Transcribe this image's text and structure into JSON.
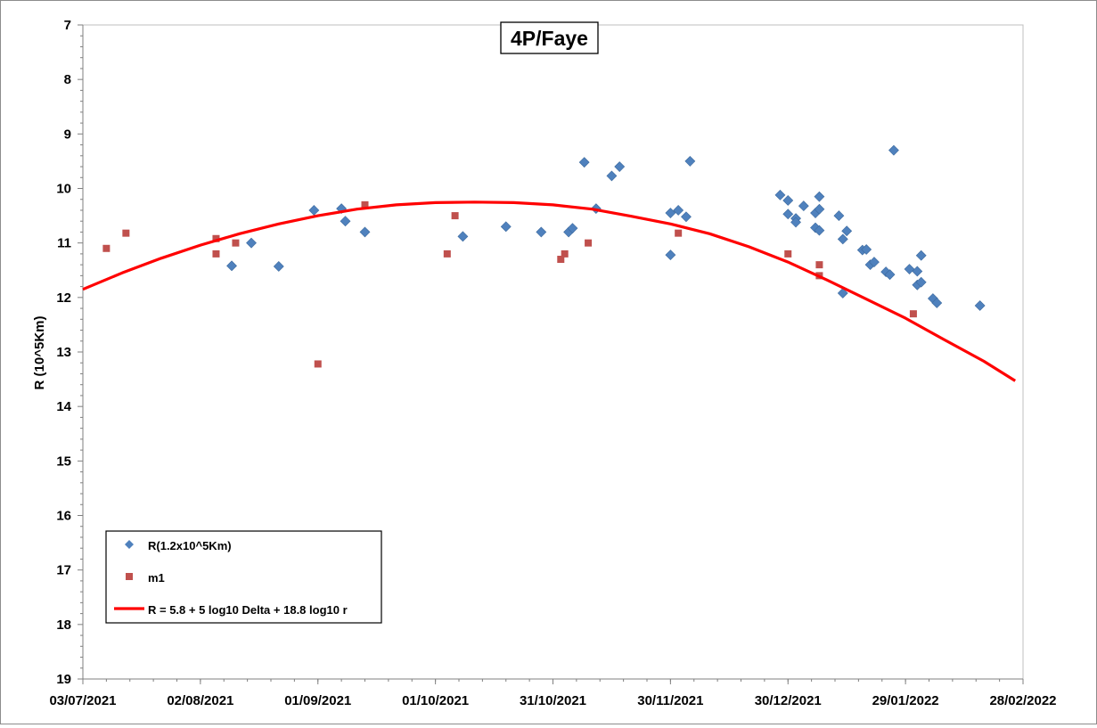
{
  "chart_data": {
    "type": "scatter",
    "title": "4P/Faye",
    "ylabel": "R (10^5Km)",
    "xlabel": "",
    "ylim": [
      7,
      19
    ],
    "y_inverted": true,
    "xlim": [
      "2021-07-03",
      "2022-02-28"
    ],
    "yticks": [
      "7",
      "8",
      "9",
      "10",
      "11",
      "12",
      "13",
      "14",
      "15",
      "16",
      "17",
      "18",
      "19"
    ],
    "xticks": [
      {
        "date": "2021-07-03",
        "label": "03/07/2021"
      },
      {
        "date": "2021-08-02",
        "label": "02/08/2021"
      },
      {
        "date": "2021-09-01",
        "label": "01/09/2021"
      },
      {
        "date": "2021-10-01",
        "label": "01/10/2021"
      },
      {
        "date": "2021-10-31",
        "label": "31/10/2021"
      },
      {
        "date": "2021-11-30",
        "label": "30/11/2021"
      },
      {
        "date": "2021-12-30",
        "label": "30/12/2021"
      },
      {
        "date": "2022-01-29",
        "label": "29/01/2022"
      },
      {
        "date": "2022-02-28",
        "label": "28/02/2022"
      }
    ],
    "grid": false,
    "legend_position": "bottom-left",
    "series": [
      {
        "name": "R(1.2x10^5Km)",
        "marker": "diamond",
        "color": "#4f81bd",
        "points": [
          {
            "x": "2021-08-10",
            "y": 11.42
          },
          {
            "x": "2021-08-15",
            "y": 11.0
          },
          {
            "x": "2021-08-22",
            "y": 11.43
          },
          {
            "x": "2021-08-31",
            "y": 10.4
          },
          {
            "x": "2021-09-07",
            "y": 10.37
          },
          {
            "x": "2021-09-08",
            "y": 10.6
          },
          {
            "x": "2021-09-13",
            "y": 10.8
          },
          {
            "x": "2021-10-08",
            "y": 10.88
          },
          {
            "x": "2021-10-19",
            "y": 10.7
          },
          {
            "x": "2021-10-28",
            "y": 10.8
          },
          {
            "x": "2021-11-04",
            "y": 10.8
          },
          {
            "x": "2021-11-05",
            "y": 10.73
          },
          {
            "x": "2021-11-08",
            "y": 9.52
          },
          {
            "x": "2021-11-11",
            "y": 10.37
          },
          {
            "x": "2021-11-15",
            "y": 9.77
          },
          {
            "x": "2021-11-17",
            "y": 9.6
          },
          {
            "x": "2021-11-30",
            "y": 10.45
          },
          {
            "x": "2021-11-30",
            "y": 11.22
          },
          {
            "x": "2021-12-02",
            "y": 10.4
          },
          {
            "x": "2021-12-04",
            "y": 10.52
          },
          {
            "x": "2021-12-05",
            "y": 9.5
          },
          {
            "x": "2021-12-28",
            "y": 10.12
          },
          {
            "x": "2021-12-30",
            "y": 10.22
          },
          {
            "x": "2021-12-30",
            "y": 10.47
          },
          {
            "x": "2022-01-01",
            "y": 10.55
          },
          {
            "x": "2022-01-01",
            "y": 10.62
          },
          {
            "x": "2022-01-03",
            "y": 10.32
          },
          {
            "x": "2022-01-06",
            "y": 10.45
          },
          {
            "x": "2022-01-07",
            "y": 10.15
          },
          {
            "x": "2022-01-07",
            "y": 10.38
          },
          {
            "x": "2022-01-06",
            "y": 10.72
          },
          {
            "x": "2022-01-07",
            "y": 10.77
          },
          {
            "x": "2022-01-12",
            "y": 10.5
          },
          {
            "x": "2022-01-13",
            "y": 10.93
          },
          {
            "x": "2022-01-14",
            "y": 10.78
          },
          {
            "x": "2022-01-13",
            "y": 11.92
          },
          {
            "x": "2022-01-18",
            "y": 11.13
          },
          {
            "x": "2022-01-19",
            "y": 11.12
          },
          {
            "x": "2022-01-20",
            "y": 11.4
          },
          {
            "x": "2022-01-21",
            "y": 11.35
          },
          {
            "x": "2022-01-24",
            "y": 11.53
          },
          {
            "x": "2022-01-25",
            "y": 11.58
          },
          {
            "x": "2022-01-26",
            "y": 9.3
          },
          {
            "x": "2022-01-30",
            "y": 11.48
          },
          {
            "x": "2022-02-01",
            "y": 11.52
          },
          {
            "x": "2022-02-02",
            "y": 11.23
          },
          {
            "x": "2022-02-01",
            "y": 11.77
          },
          {
            "x": "2022-02-02",
            "y": 11.72
          },
          {
            "x": "2022-02-05",
            "y": 12.02
          },
          {
            "x": "2022-02-06",
            "y": 12.1
          },
          {
            "x": "2022-02-17",
            "y": 12.15
          }
        ]
      },
      {
        "name": "m1",
        "marker": "square",
        "color": "#c0504d",
        "points": [
          {
            "x": "2021-07-09",
            "y": 11.1
          },
          {
            "x": "2021-07-14",
            "y": 10.82
          },
          {
            "x": "2021-08-06",
            "y": 11.2
          },
          {
            "x": "2021-08-06",
            "y": 10.92
          },
          {
            "x": "2021-08-11",
            "y": 11.0
          },
          {
            "x": "2021-09-01",
            "y": 13.22
          },
          {
            "x": "2021-09-13",
            "y": 10.3
          },
          {
            "x": "2021-10-04",
            "y": 11.2
          },
          {
            "x": "2021-10-06",
            "y": 10.5
          },
          {
            "x": "2021-11-02",
            "y": 11.3
          },
          {
            "x": "2021-11-03",
            "y": 11.2
          },
          {
            "x": "2021-11-09",
            "y": 11.0
          },
          {
            "x": "2021-12-02",
            "y": 10.82
          },
          {
            "x": "2021-12-30",
            "y": 11.2
          },
          {
            "x": "2022-01-07",
            "y": 11.6
          },
          {
            "x": "2022-01-07",
            "y": 11.4
          },
          {
            "x": "2022-01-31",
            "y": 12.3
          }
        ]
      },
      {
        "name": "R = 5.8 + 5 log10 Delta + 18.8 log10 r",
        "type": "line",
        "color": "#ff0000",
        "points": [
          {
            "x": "2021-07-03",
            "y": 11.85
          },
          {
            "x": "2021-07-13",
            "y": 11.55
          },
          {
            "x": "2021-07-23",
            "y": 11.28
          },
          {
            "x": "2021-08-02",
            "y": 11.04
          },
          {
            "x": "2021-08-12",
            "y": 10.83
          },
          {
            "x": "2021-08-22",
            "y": 10.65
          },
          {
            "x": "2021-09-01",
            "y": 10.5
          },
          {
            "x": "2021-09-11",
            "y": 10.38
          },
          {
            "x": "2021-09-21",
            "y": 10.3
          },
          {
            "x": "2021-10-01",
            "y": 10.26
          },
          {
            "x": "2021-10-11",
            "y": 10.25
          },
          {
            "x": "2021-10-21",
            "y": 10.26
          },
          {
            "x": "2021-10-31",
            "y": 10.3
          },
          {
            "x": "2021-11-10",
            "y": 10.38
          },
          {
            "x": "2021-11-20",
            "y": 10.51
          },
          {
            "x": "2021-11-30",
            "y": 10.65
          },
          {
            "x": "2021-12-10",
            "y": 10.83
          },
          {
            "x": "2021-12-20",
            "y": 11.07
          },
          {
            "x": "2021-12-30",
            "y": 11.35
          },
          {
            "x": "2022-01-09",
            "y": 11.68
          },
          {
            "x": "2022-01-19",
            "y": 12.03
          },
          {
            "x": "2022-01-29",
            "y": 12.38
          },
          {
            "x": "2022-02-08",
            "y": 12.78
          },
          {
            "x": "2022-02-18",
            "y": 13.17
          },
          {
            "x": "2022-02-26",
            "y": 13.53
          }
        ]
      }
    ]
  }
}
